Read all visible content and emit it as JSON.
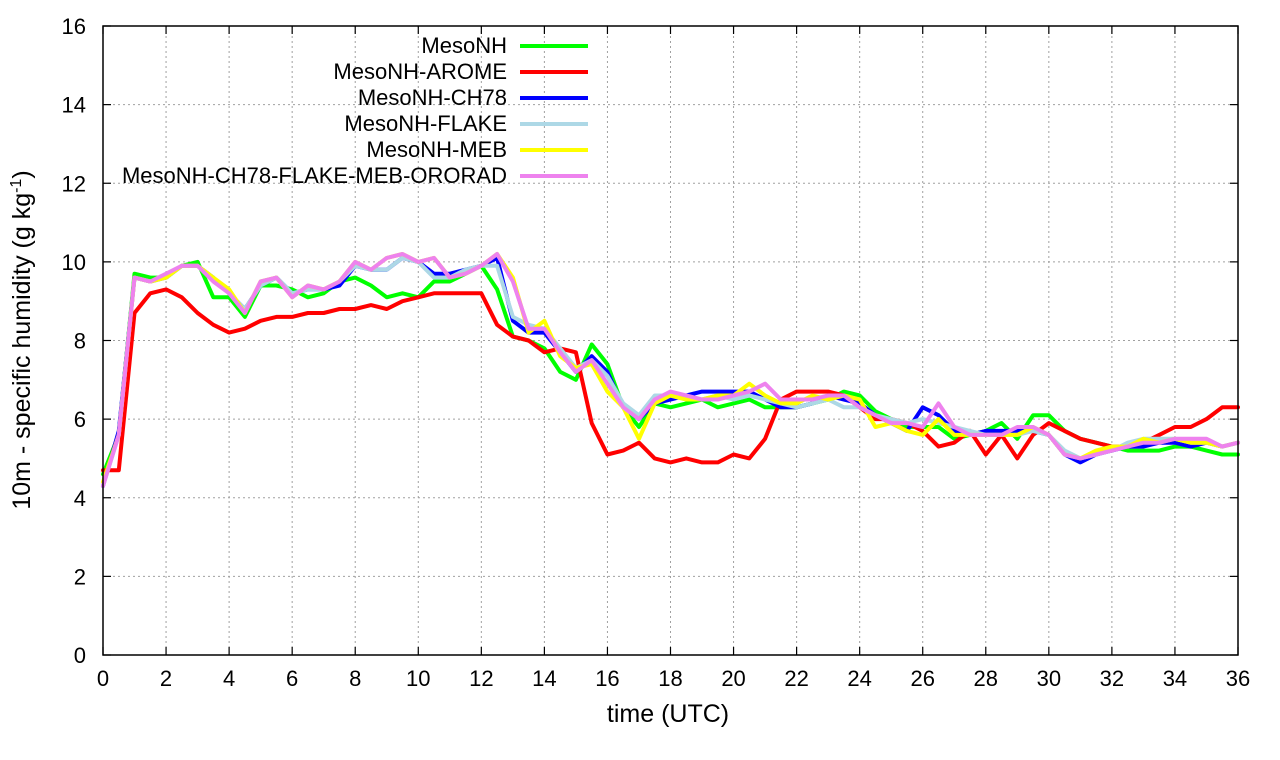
{
  "chart_data": {
    "type": "line",
    "title": "",
    "xlabel": "time (UTC)",
    "ylabel": {
      "main": "10m - specific humidity (g kg",
      "superscript": "-1",
      "close": ")"
    },
    "xlim": [
      0,
      36
    ],
    "ylim": [
      0,
      16
    ],
    "x_ticks": [
      "0",
      "2",
      "4",
      "6",
      "8",
      "10",
      "12",
      "14",
      "16",
      "18",
      "20",
      "22",
      "24",
      "26",
      "28",
      "30",
      "32",
      "34",
      "36"
    ],
    "y_ticks": [
      "0",
      "2",
      "4",
      "6",
      "8",
      "10",
      "12",
      "14",
      "16"
    ],
    "grid": true,
    "legend_position": "top-center",
    "series": [
      {
        "name": "MesoNH",
        "color": "#00ff00",
        "x": [
          0,
          0.5,
          1,
          1.5,
          2,
          2.5,
          3,
          3.5,
          4,
          4.5,
          5,
          5.5,
          6,
          6.5,
          7,
          7.5,
          8,
          8.5,
          9,
          9.5,
          10,
          10.5,
          11,
          11.5,
          12,
          12.5,
          13,
          13.5,
          14,
          14.5,
          15,
          15.5,
          16,
          16.5,
          17,
          17.5,
          18,
          18.5,
          19,
          19.5,
          20,
          20.5,
          21,
          21.5,
          22,
          22.5,
          23,
          23.5,
          24,
          24.5,
          25,
          25.5,
          26,
          26.5,
          27,
          27.5,
          28,
          28.5,
          29,
          29.5,
          30,
          30.5,
          31,
          31.5,
          32,
          32.5,
          33,
          33.5,
          34,
          34.5,
          35,
          35.5,
          36
        ],
        "values": [
          4.6,
          5.6,
          9.7,
          9.6,
          9.6,
          9.9,
          10.0,
          9.1,
          9.1,
          8.6,
          9.4,
          9.4,
          9.3,
          9.1,
          9.2,
          9.5,
          9.6,
          9.4,
          9.1,
          9.2,
          9.1,
          9.5,
          9.5,
          9.7,
          9.9,
          9.3,
          8.1,
          8.0,
          7.8,
          7.2,
          7.0,
          7.9,
          7.4,
          6.3,
          5.8,
          6.4,
          6.3,
          6.4,
          6.5,
          6.3,
          6.4,
          6.5,
          6.3,
          6.3,
          6.3,
          6.4,
          6.5,
          6.7,
          6.6,
          6.2,
          6.0,
          5.8,
          5.8,
          5.8,
          5.5,
          5.6,
          5.7,
          5.9,
          5.5,
          6.1,
          6.1,
          5.7,
          5.5,
          5.4,
          5.3,
          5.2,
          5.2,
          5.2,
          5.3,
          5.3,
          5.2,
          5.1,
          5.1
        ]
      },
      {
        "name": "MesoNH-AROME",
        "color": "#ff0000",
        "x": [
          0,
          0.5,
          1,
          1.5,
          2,
          2.5,
          3,
          3.5,
          4,
          4.5,
          5,
          5.5,
          6,
          6.5,
          7,
          7.5,
          8,
          8.5,
          9,
          9.5,
          10,
          10.5,
          11,
          11.5,
          12,
          12.5,
          13,
          13.5,
          14,
          14.5,
          15,
          15.5,
          16,
          16.5,
          17,
          17.5,
          18,
          18.5,
          19,
          19.5,
          20,
          20.5,
          21,
          21.5,
          22,
          22.5,
          23,
          23.5,
          24,
          24.5,
          25,
          25.5,
          26,
          26.5,
          27,
          27.5,
          28,
          28.5,
          29,
          29.5,
          30,
          30.5,
          31,
          31.5,
          32,
          32.5,
          33,
          33.5,
          34,
          34.5,
          35,
          35.5,
          36
        ],
        "values": [
          4.7,
          4.7,
          8.7,
          9.2,
          9.3,
          9.1,
          8.7,
          8.4,
          8.2,
          8.3,
          8.5,
          8.6,
          8.6,
          8.7,
          8.7,
          8.8,
          8.8,
          8.9,
          8.8,
          9.0,
          9.1,
          9.2,
          9.2,
          9.2,
          9.2,
          8.4,
          8.1,
          8.0,
          7.7,
          7.8,
          7.7,
          5.9,
          5.1,
          5.2,
          5.4,
          5.0,
          4.9,
          5.0,
          4.9,
          4.9,
          5.1,
          5.0,
          5.5,
          6.5,
          6.7,
          6.7,
          6.7,
          6.6,
          6.3,
          6.0,
          6.0,
          5.9,
          5.7,
          5.3,
          5.4,
          5.7,
          5.1,
          5.6,
          5.0,
          5.6,
          5.9,
          5.7,
          5.5,
          5.4,
          5.3,
          5.3,
          5.4,
          5.6,
          5.8,
          5.8,
          6.0,
          6.3,
          6.3
        ]
      },
      {
        "name": "MesoNH-CH78",
        "color": "#0000ff",
        "x": [
          0,
          0.5,
          1,
          1.5,
          2,
          2.5,
          3,
          3.5,
          4,
          4.5,
          5,
          5.5,
          6,
          6.5,
          7,
          7.5,
          8,
          8.5,
          9,
          9.5,
          10,
          10.5,
          11,
          11.5,
          12,
          12.5,
          13,
          13.5,
          14,
          14.5,
          15,
          15.5,
          16,
          16.5,
          17,
          17.5,
          18,
          18.5,
          19,
          19.5,
          20,
          20.5,
          21,
          21.5,
          22,
          22.5,
          23,
          23.5,
          24,
          24.5,
          25,
          25.5,
          26,
          26.5,
          27,
          27.5,
          28,
          28.5,
          29,
          29.5,
          30,
          30.5,
          31,
          31.5,
          32,
          32.5,
          33,
          33.5,
          34,
          34.5,
          35,
          35.5,
          36
        ],
        "values": [
          4.3,
          5.7,
          9.6,
          9.5,
          9.6,
          9.9,
          9.9,
          9.6,
          9.2,
          8.8,
          9.4,
          9.6,
          9.2,
          9.3,
          9.3,
          9.4,
          9.9,
          9.8,
          9.8,
          10.1,
          10.0,
          9.7,
          9.7,
          9.8,
          9.9,
          10.1,
          8.5,
          8.2,
          8.2,
          7.7,
          7.2,
          7.6,
          7.2,
          6.3,
          6.0,
          6.4,
          6.5,
          6.6,
          6.7,
          6.7,
          6.7,
          6.7,
          6.5,
          6.3,
          6.3,
          6.4,
          6.6,
          6.5,
          6.4,
          6.1,
          5.9,
          5.7,
          6.3,
          6.1,
          5.7,
          5.6,
          5.7,
          5.7,
          5.7,
          5.7,
          5.6,
          5.1,
          4.9,
          5.1,
          5.2,
          5.3,
          5.3,
          5.4,
          5.4,
          5.3,
          5.4,
          5.3,
          5.4
        ]
      },
      {
        "name": "MesoNH-FLAKE",
        "color": "#add8e6",
        "x": [
          0,
          0.5,
          1,
          1.5,
          2,
          2.5,
          3,
          3.5,
          4,
          4.5,
          5,
          5.5,
          6,
          6.5,
          7,
          7.5,
          8,
          8.5,
          9,
          9.5,
          10,
          10.5,
          11,
          11.5,
          12,
          12.5,
          13,
          13.5,
          14,
          14.5,
          15,
          15.5,
          16,
          16.5,
          17,
          17.5,
          18,
          18.5,
          19,
          19.5,
          20,
          20.5,
          21,
          21.5,
          22,
          22.5,
          23,
          23.5,
          24,
          24.5,
          25,
          25.5,
          26,
          26.5,
          27,
          27.5,
          28,
          28.5,
          29,
          29.5,
          30,
          30.5,
          31,
          31.5,
          32,
          32.5,
          33,
          33.5,
          34,
          34.5,
          35,
          35.5,
          36
        ],
        "values": [
          4.3,
          5.6,
          9.6,
          9.5,
          9.6,
          9.9,
          9.9,
          9.6,
          9.2,
          8.8,
          9.4,
          9.6,
          9.2,
          9.3,
          9.3,
          9.5,
          9.9,
          9.8,
          9.8,
          10.1,
          10.0,
          9.6,
          9.6,
          9.8,
          9.9,
          9.9,
          8.6,
          8.4,
          8.3,
          7.8,
          7.3,
          7.5,
          7.1,
          6.4,
          6.1,
          6.6,
          6.6,
          6.5,
          6.5,
          6.6,
          6.5,
          6.6,
          6.5,
          6.4,
          6.3,
          6.4,
          6.5,
          6.3,
          6.3,
          6.1,
          6.0,
          5.9,
          6.0,
          5.9,
          5.8,
          5.7,
          5.6,
          5.6,
          5.6,
          5.7,
          5.6,
          5.2,
          5.0,
          5.1,
          5.2,
          5.4,
          5.5,
          5.5,
          5.5,
          5.4,
          5.4,
          5.3,
          5.4
        ]
      },
      {
        "name": "MesoNH-MEB",
        "color": "#ffff00",
        "x": [
          0,
          0.5,
          1,
          1.5,
          2,
          2.5,
          3,
          3.5,
          4,
          4.5,
          5,
          5.5,
          6,
          6.5,
          7,
          7.5,
          8,
          8.5,
          9,
          9.5,
          10,
          10.5,
          11,
          11.5,
          12,
          12.5,
          13,
          13.5,
          14,
          14.5,
          15,
          15.5,
          16,
          16.5,
          17,
          17.5,
          18,
          18.5,
          19,
          19.5,
          20,
          20.5,
          21,
          21.5,
          22,
          22.5,
          23,
          23.5,
          24,
          24.5,
          25,
          25.5,
          26,
          26.5,
          27,
          27.5,
          28,
          28.5,
          29,
          29.5,
          30,
          30.5,
          31,
          31.5,
          32,
          32.5,
          33,
          33.5,
          34,
          34.5,
          35,
          35.5,
          36
        ],
        "values": [
          4.4,
          5.6,
          9.6,
          9.5,
          9.6,
          9.9,
          9.9,
          9.6,
          9.3,
          8.7,
          9.5,
          9.6,
          9.1,
          9.4,
          9.3,
          9.5,
          10.0,
          9.8,
          10.1,
          10.2,
          10.0,
          10.1,
          9.6,
          9.7,
          9.9,
          10.2,
          9.6,
          8.2,
          8.5,
          7.6,
          7.3,
          7.4,
          6.7,
          6.3,
          5.5,
          6.4,
          6.6,
          6.5,
          6.5,
          6.6,
          6.6,
          6.9,
          6.6,
          6.4,
          6.4,
          6.6,
          6.5,
          6.6,
          6.5,
          5.8,
          5.9,
          5.7,
          5.6,
          6.0,
          5.6,
          5.6,
          5.6,
          5.6,
          5.6,
          5.8,
          5.6,
          5.1,
          5.0,
          5.2,
          5.3,
          5.3,
          5.5,
          5.4,
          5.5,
          5.4,
          5.4,
          5.3,
          5.4
        ]
      },
      {
        "name": "MesoNH-CH78-FLAKE-MEB-ORORAD",
        "color": "#ee82ee",
        "x": [
          0,
          0.5,
          1,
          1.5,
          2,
          2.5,
          3,
          3.5,
          4,
          4.5,
          5,
          5.5,
          6,
          6.5,
          7,
          7.5,
          8,
          8.5,
          9,
          9.5,
          10,
          10.5,
          11,
          11.5,
          12,
          12.5,
          13,
          13.5,
          14,
          14.5,
          15,
          15.5,
          16,
          16.5,
          17,
          17.5,
          18,
          18.5,
          19,
          19.5,
          20,
          20.5,
          21,
          21.5,
          22,
          22.5,
          23,
          23.5,
          24,
          24.5,
          25,
          25.5,
          26,
          26.5,
          27,
          27.5,
          28,
          28.5,
          29,
          29.5,
          30,
          30.5,
          31,
          31.5,
          32,
          32.5,
          33,
          33.5,
          34,
          34.5,
          35,
          35.5,
          36
        ],
        "values": [
          4.3,
          5.6,
          9.6,
          9.5,
          9.7,
          9.9,
          9.9,
          9.5,
          9.2,
          8.7,
          9.5,
          9.6,
          9.1,
          9.4,
          9.3,
          9.5,
          10.0,
          9.8,
          10.1,
          10.2,
          10.0,
          10.1,
          9.6,
          9.7,
          9.9,
          10.2,
          9.5,
          8.3,
          8.3,
          7.7,
          7.2,
          7.5,
          6.9,
          6.3,
          6.0,
          6.5,
          6.7,
          6.6,
          6.5,
          6.5,
          6.6,
          6.7,
          6.9,
          6.5,
          6.5,
          6.5,
          6.6,
          6.6,
          6.3,
          6.1,
          5.9,
          5.9,
          5.8,
          6.4,
          5.8,
          5.6,
          5.6,
          5.6,
          5.8,
          5.8,
          5.6,
          5.1,
          5.0,
          5.1,
          5.2,
          5.3,
          5.4,
          5.4,
          5.5,
          5.5,
          5.5,
          5.3,
          5.4
        ]
      }
    ]
  }
}
